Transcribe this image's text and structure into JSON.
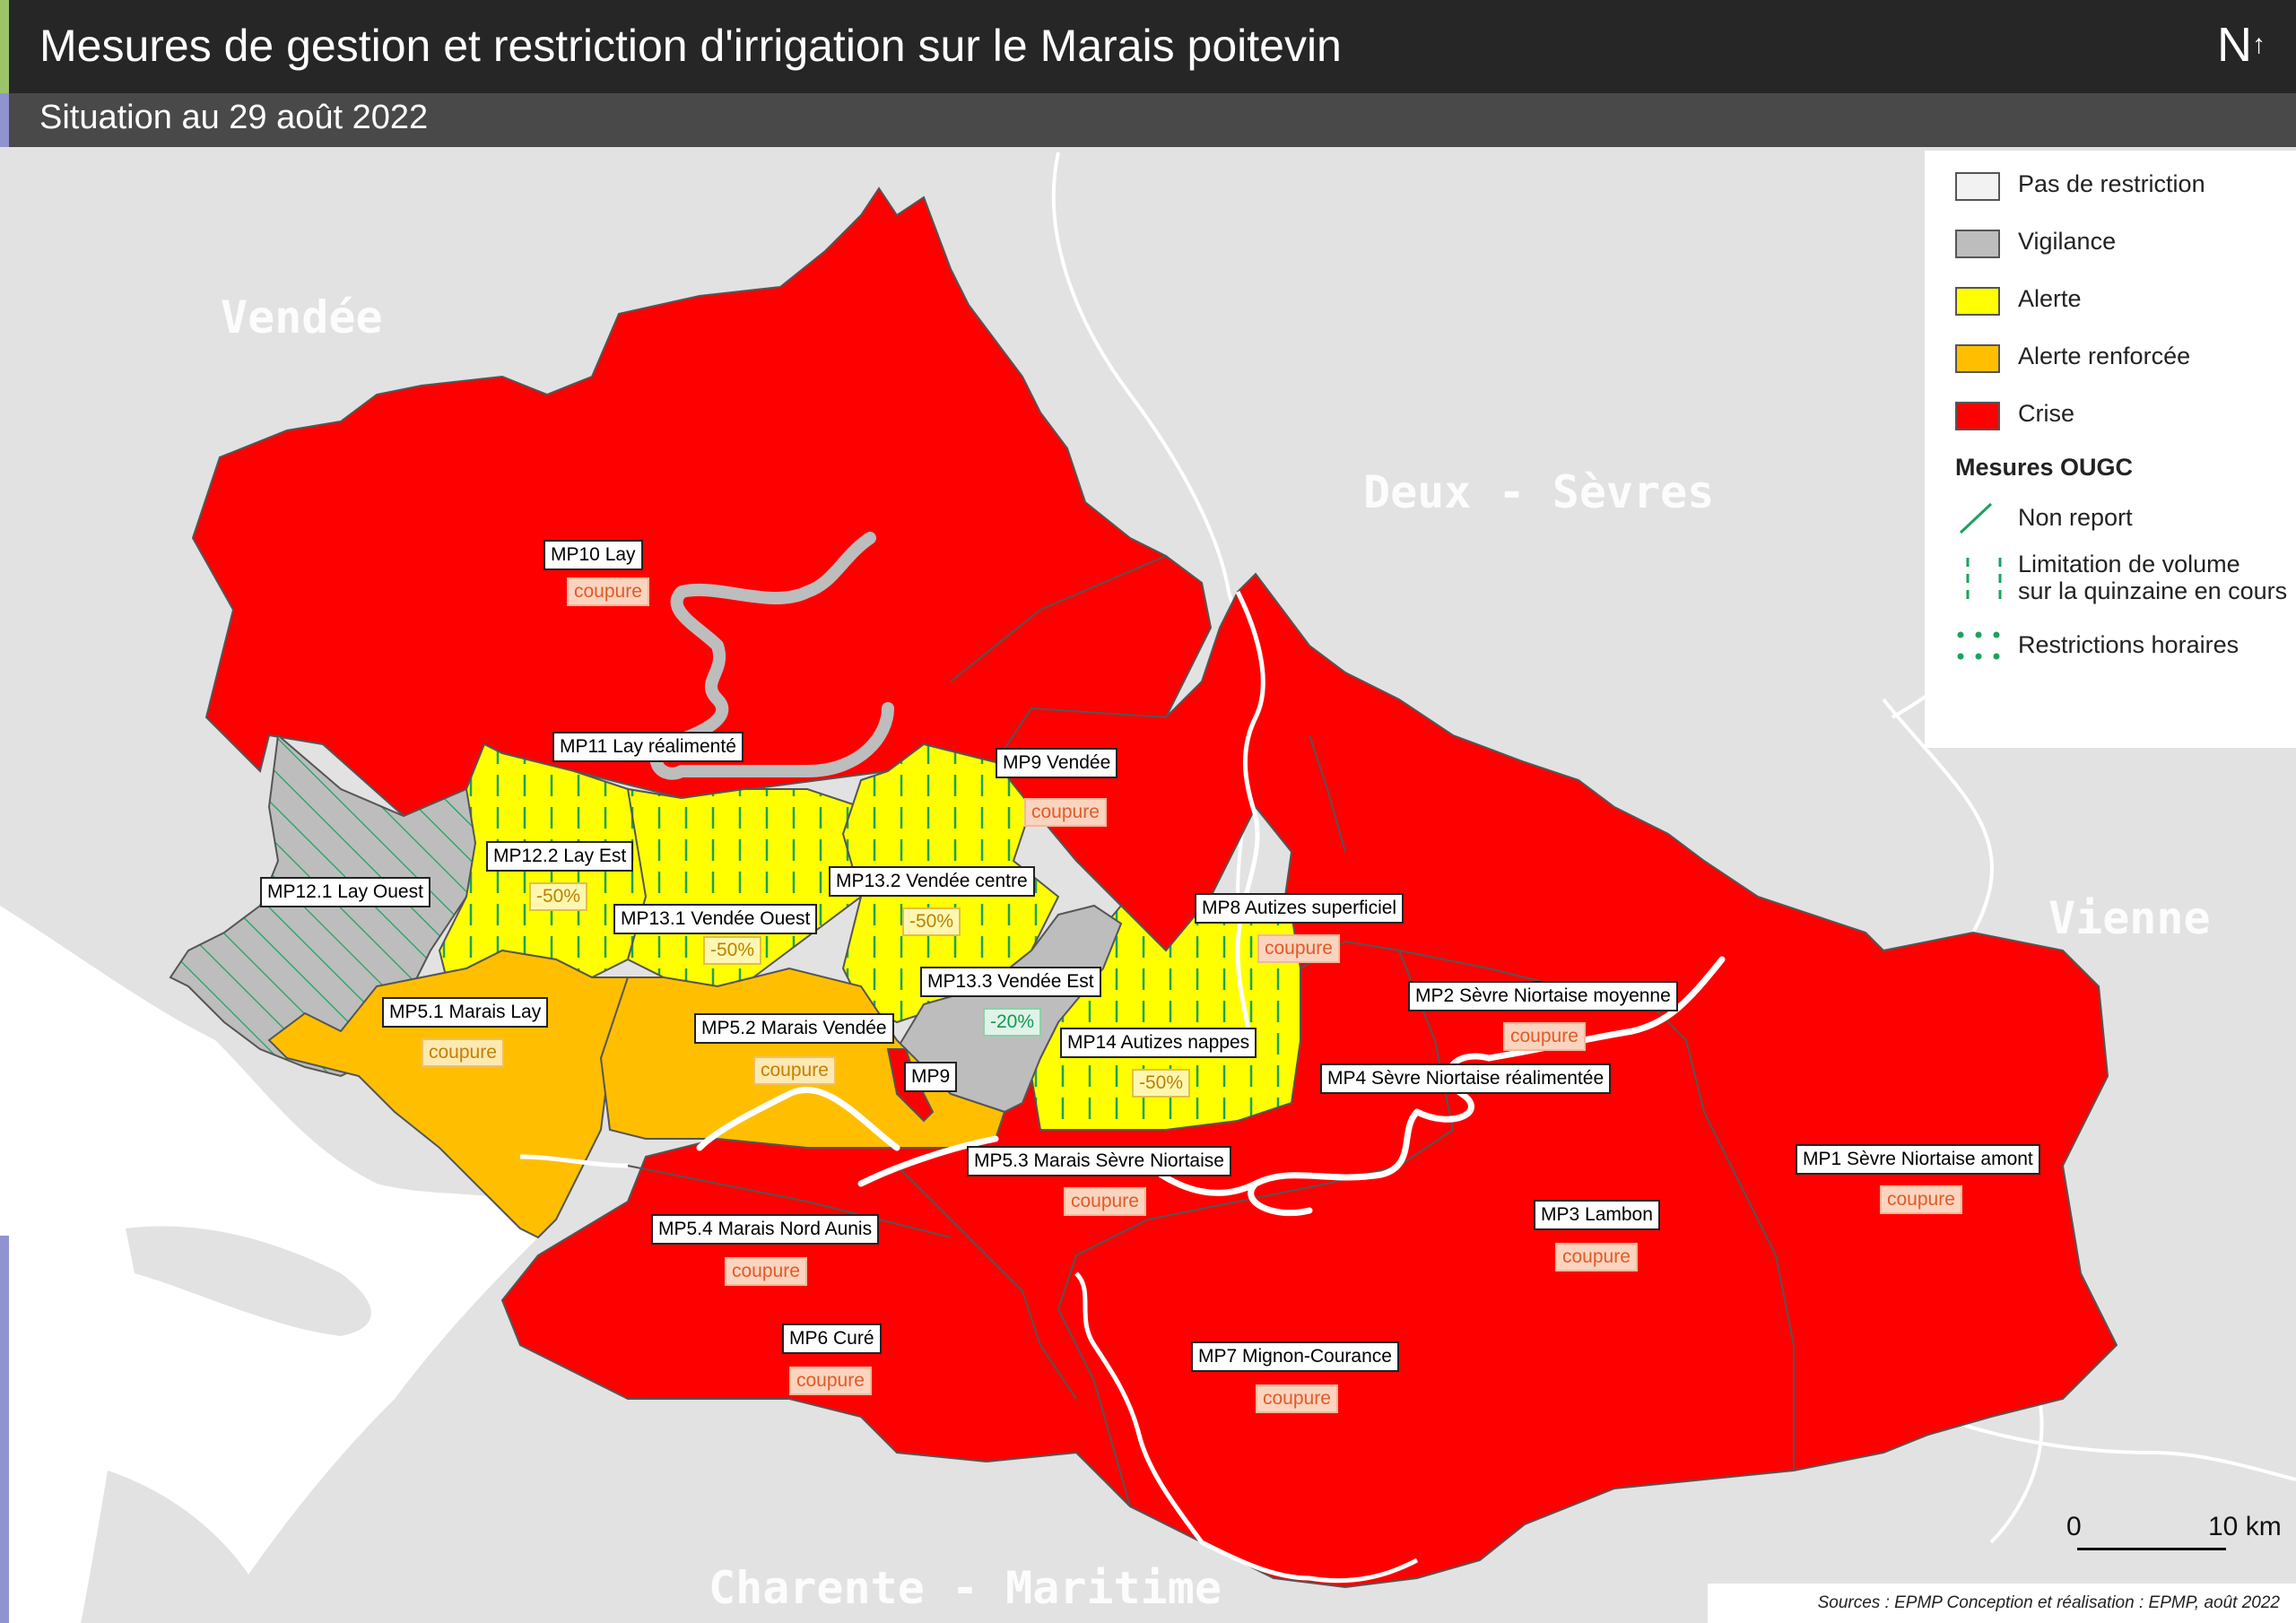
{
  "title": "Mesures de gestion et restriction d'irrigation sur le Marais poitevin",
  "subtitle": "Situation au 29 août 2022",
  "north_label": "N",
  "departments": [
    "Vendée",
    "Deux - Sèvres",
    "Vienne",
    "Charente - Maritime"
  ],
  "legend": {
    "items": [
      {
        "label": "Pas de restriction",
        "color": "#f2f2f2"
      },
      {
        "label": "Vigilance",
        "color": "#bdbdbd"
      },
      {
        "label": "Alerte",
        "color": "#ffff00"
      },
      {
        "label": "Alerte renforcée",
        "color": "#ffbf00"
      },
      {
        "label": "Crise",
        "color": "#ff0000"
      }
    ],
    "ougc_title": "Mesures OUGC",
    "ougc_items": [
      "Non report",
      "Limitation de volume",
      "sur la quinzaine en cours",
      "Restrictions horaires"
    ],
    "ougc_color": "#1aa35a"
  },
  "zones": [
    {
      "label": "MP10 Lay",
      "measure": "coupure"
    },
    {
      "label": "MP11 Lay réalimenté",
      "measure": ""
    },
    {
      "label": "MP9 Vendée",
      "measure": "coupure"
    },
    {
      "label": "MP12.2 Lay Est",
      "measure": "-50%"
    },
    {
      "label": "MP12.1 Lay Ouest",
      "measure": ""
    },
    {
      "label": "MP13.2 Vendée centre",
      "measure": "-50%"
    },
    {
      "label": "MP13.1 Vendée Ouest",
      "measure": "-50%"
    },
    {
      "label": "MP8 Autizes superficiel",
      "measure": "coupure"
    },
    {
      "label": "MP13.3 Vendée Est",
      "measure": "-20%"
    },
    {
      "label": "MP5.1 Marais Lay",
      "measure": "coupure"
    },
    {
      "label": "MP5.2 Marais Vendée",
      "measure": "coupure"
    },
    {
      "label": "MP2 Sèvre Niortaise moyenne",
      "measure": "coupure"
    },
    {
      "label": "MP14 Autizes nappes",
      "measure": "-50%"
    },
    {
      "label": "MP9",
      "measure": ""
    },
    {
      "label": "MP4 Sèvre Niortaise réalimentée",
      "measure": ""
    },
    {
      "label": "MP5.3 Marais Sèvre Niortaise",
      "measure": "coupure"
    },
    {
      "label": "MP1 Sèvre Niortaise amont",
      "measure": "coupure"
    },
    {
      "label": "MP5.4 Marais Nord Aunis",
      "measure": "coupure"
    },
    {
      "label": "MP3 Lambon",
      "measure": "coupure"
    },
    {
      "label": "MP6 Curé",
      "measure": "coupure"
    },
    {
      "label": "MP7 Mignon-Courance",
      "measure": "coupure"
    }
  ],
  "scale": {
    "zero": "0",
    "ten": "10 km"
  },
  "sources": "Sources : EPMP Conception et réalisation : EPMP, août 2022"
}
